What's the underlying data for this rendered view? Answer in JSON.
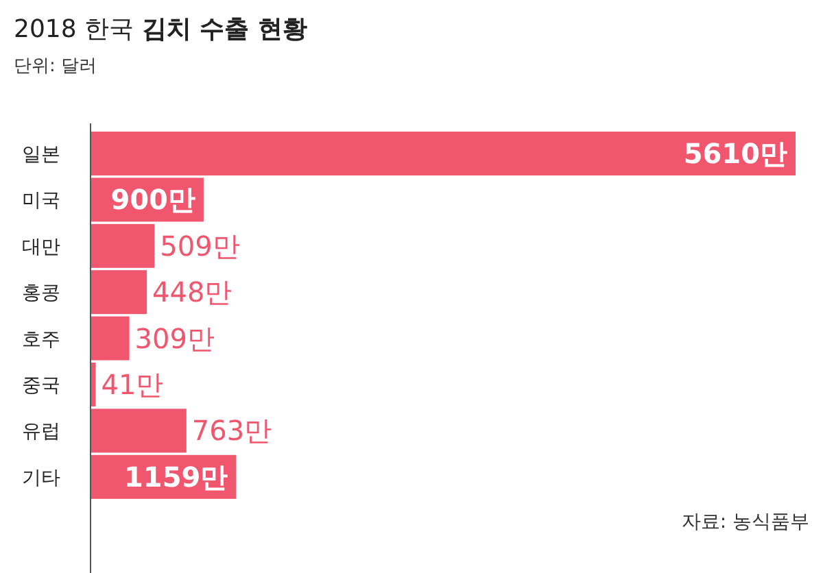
{
  "chart_data": {
    "type": "bar",
    "orientation": "horizontal",
    "title": "2018 한국 **김치 수출 현황**",
    "subtitle": "단위: 달러",
    "categories": [
      "일본",
      "미국",
      "대만",
      "홍콩",
      "호주",
      "중국",
      "유럽",
      "기타"
    ],
    "values": [
      5610,
      900,
      509,
      448,
      309,
      41,
      763,
      1159
    ],
    "value_labels": [
      "5610만",
      "900만",
      "509만",
      "448만",
      "309만",
      "41만",
      "763만",
      "1159만"
    ],
    "color": "#f0566e",
    "annotations": [
      "자료: 농식품부"
    ]
  }
}
